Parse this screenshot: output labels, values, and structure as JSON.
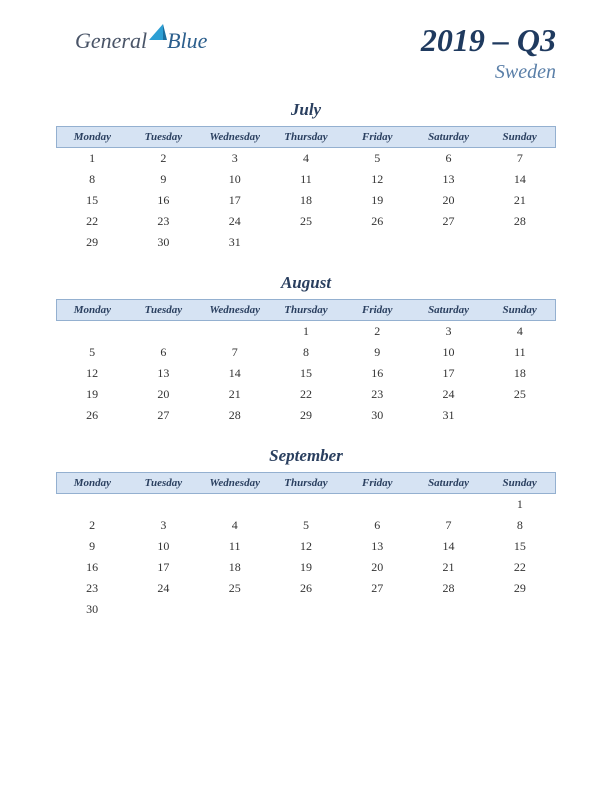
{
  "logo": {
    "text1": "General",
    "text2": "Blue",
    "text1_color": "#4a5568",
    "text2_color": "#2c5f8d",
    "triangle_color": "#2c9fd4"
  },
  "header": {
    "year_quarter": "2019 – Q3",
    "country": "Sweden",
    "title_color": "#1f3a5f",
    "country_color": "#5a7fa8"
  },
  "day_headers": [
    "Monday",
    "Tuesday",
    "Wednesday",
    "Thursday",
    "Friday",
    "Saturday",
    "Sunday"
  ],
  "header_bg": "#d6e3f3",
  "header_border": "#94b0d0",
  "months": [
    {
      "name": "July",
      "weeks": [
        [
          "1",
          "2",
          "3",
          "4",
          "5",
          "6",
          "7"
        ],
        [
          "8",
          "9",
          "10",
          "11",
          "12",
          "13",
          "14"
        ],
        [
          "15",
          "16",
          "17",
          "18",
          "19",
          "20",
          "21"
        ],
        [
          "22",
          "23",
          "24",
          "25",
          "26",
          "27",
          "28"
        ],
        [
          "29",
          "30",
          "31",
          "",
          "",
          "",
          ""
        ]
      ]
    },
    {
      "name": "August",
      "weeks": [
        [
          "",
          "",
          "",
          "1",
          "2",
          "3",
          "4"
        ],
        [
          "5",
          "6",
          "7",
          "8",
          "9",
          "10",
          "11"
        ],
        [
          "12",
          "13",
          "14",
          "15",
          "16",
          "17",
          "18"
        ],
        [
          "19",
          "20",
          "21",
          "22",
          "23",
          "24",
          "25"
        ],
        [
          "26",
          "27",
          "28",
          "29",
          "30",
          "31",
          ""
        ]
      ]
    },
    {
      "name": "September",
      "weeks": [
        [
          "",
          "",
          "",
          "",
          "",
          "",
          "1"
        ],
        [
          "2",
          "3",
          "4",
          "5",
          "6",
          "7",
          "8"
        ],
        [
          "9",
          "10",
          "11",
          "12",
          "13",
          "14",
          "15"
        ],
        [
          "16",
          "17",
          "18",
          "19",
          "20",
          "21",
          "22"
        ],
        [
          "23",
          "24",
          "25",
          "26",
          "27",
          "28",
          "29"
        ],
        [
          "30",
          "",
          "",
          "",
          "",
          "",
          ""
        ]
      ]
    }
  ]
}
